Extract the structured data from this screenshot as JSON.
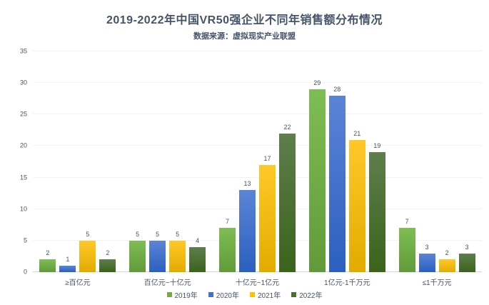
{
  "title": "2019-2022年中国VR50强企业不同年销售额分布情况",
  "subtitle": "数据来源：虚拟现实产业联盟",
  "colors": {
    "text": "#44546a",
    "gridline": "#f2f2f2",
    "baseline": "#d6d6d6",
    "background": "#ffffff"
  },
  "chart_data": {
    "type": "bar",
    "title": "2019-2022年中国VR50强企业不同年销售额分布情况",
    "subtitle": "数据来源：虚拟现实产业联盟",
    "categories": [
      "≥百亿元",
      "百亿元~十亿元",
      "十亿元~1亿元",
      "1亿元-1千万元",
      "≤1千万元"
    ],
    "series": [
      {
        "name": "2019年",
        "color": "#70ad47",
        "gradient": [
          "#7dbe53",
          "#619a3a"
        ],
        "values": [
          2,
          5,
          7,
          29,
          7
        ]
      },
      {
        "name": "2020年",
        "color": "#4472c4",
        "gradient": [
          "#5b84d6",
          "#2c5fc0"
        ],
        "values": [
          1,
          5,
          13,
          28,
          3
        ]
      },
      {
        "name": "2021年",
        "color": "#ffc000",
        "gradient": [
          "#ffc829",
          "#e3ab00"
        ],
        "values": [
          5,
          5,
          17,
          21,
          2
        ]
      },
      {
        "name": "2022年",
        "color": "#4e6b30",
        "gradient": [
          "#5e7e4c",
          "#3a631b"
        ],
        "values": [
          2,
          4,
          22,
          19,
          3
        ]
      }
    ],
    "xlabel": "",
    "ylabel": "",
    "ylim": [
      0,
      35
    ],
    "ytick_step": 5,
    "grid": true,
    "legend_position": "bottom",
    "data_labels": true
  }
}
